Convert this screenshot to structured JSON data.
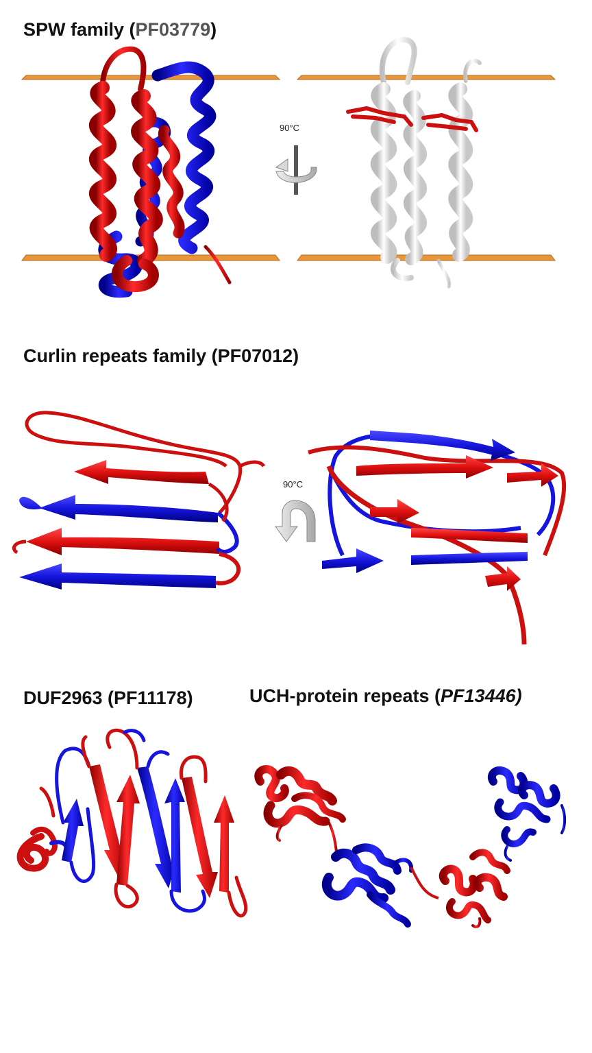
{
  "panels": {
    "spw": {
      "title_prefix": "SPW family (",
      "title_code": "PF03779",
      "title_suffix": ")",
      "rotation_label": "90°C"
    },
    "curlin": {
      "title": "Curlin repeats family (PF07012)",
      "rotation_label": "90°C"
    },
    "duf": {
      "title": "DUF2963 (PF11178)"
    },
    "uch": {
      "title_prefix": "UCH-protein repeats (",
      "title_code": "PF13446)"
    }
  },
  "colors": {
    "repeat_a": "#dd1111",
    "repeat_b": "#1111cc",
    "membrane_plane": "#e8963c",
    "neutral_structure": "#f0f0f0",
    "arrow_gray": "#cfcfcf"
  }
}
